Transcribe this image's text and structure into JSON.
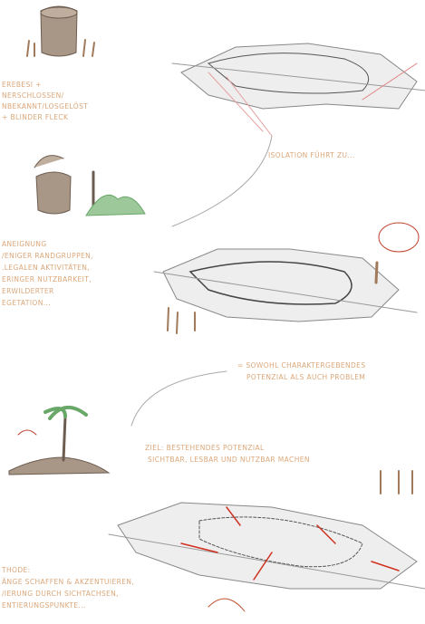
{
  "blocks": [
    {
      "lines": [
        "EREBESI +",
        "NERSCHLOSSEN/",
        "NBEKANNT/LOSGELÖST",
        "+ BLINDER FLECK"
      ]
    },
    {
      "lines": [
        "ISOLATION FÜHRT ZU..."
      ]
    },
    {
      "lines": [
        "ANEIGNUNG",
        "/ENIGER RANDGRUPPEN,",
        ".LEGALEN AKTIVITÄTEN,",
        "ERINGER NUTZBARKEIT,",
        "ERWILDERTER",
        "EGETATION..."
      ]
    },
    {
      "lines": [
        "= SOWOHL CHARAKTERGEBENDES",
        "POTENZIAL ALS AUCH PROBLEM"
      ]
    },
    {
      "lines": [
        "ZIEL: BESTEHENDES POTENZIAL",
        "SICHTBAR, LESBAR UND NUTZBAR MACHEN"
      ]
    },
    {
      "lines": [
        "THODE:",
        "ÄNGE SCHAFFEN & AKZENTUIEREN,",
        "/IERUNG DURCH SICHTACHSEN,",
        "ENTIERUNGSPUNKTE..."
      ]
    }
  ]
}
